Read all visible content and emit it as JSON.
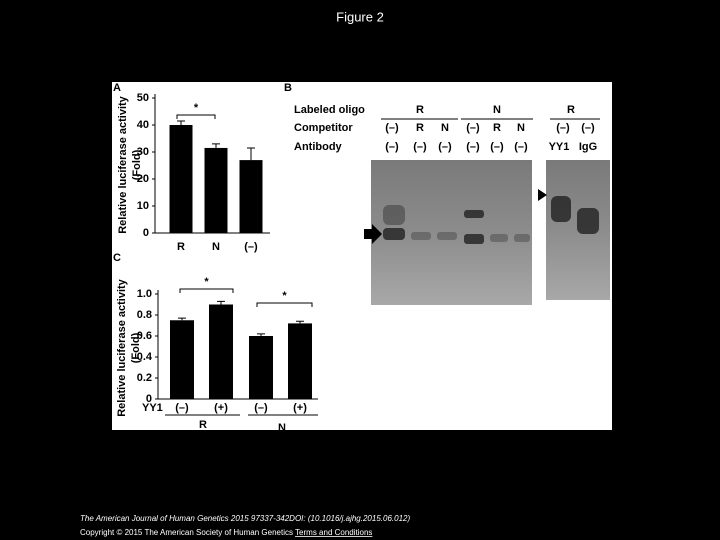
{
  "title": "Figure 2",
  "chart_data": [
    {
      "type": "bar",
      "panel": "A",
      "ylabel_lines": [
        "Relative luciferase activity",
        "(Fold)"
      ],
      "categories": [
        "R",
        "N",
        "(–)"
      ],
      "values": [
        40,
        31.5,
        27
      ],
      "errors": [
        1.5,
        1.5,
        4.5
      ],
      "ylim": [
        0,
        50
      ],
      "yticks": [
        0,
        10,
        20,
        30,
        40,
        50
      ],
      "color": "#000000",
      "significance": [
        "*"
      ]
    },
    {
      "type": "bar",
      "panel": "C",
      "ylabel_lines": [
        "Relative luciferase activity",
        "(Fold)"
      ],
      "row_label": "YY1",
      "categories": [
        "(–)",
        "(+)",
        "(–)",
        "(+)"
      ],
      "groups": [
        "R",
        "N"
      ],
      "values": [
        0.75,
        0.9,
        0.6,
        0.72
      ],
      "errors": [
        0.02,
        0.03,
        0.02,
        0.02
      ],
      "ylim": [
        0,
        1
      ],
      "yticks": [
        0,
        0.2,
        0.4,
        0.6,
        0.8,
        {
          "value": 1,
          "label": "1.0"
        }
      ],
      "color": "#000000",
      "significance": [
        "*",
        "*"
      ]
    }
  ],
  "panel_b": {
    "panel": "B",
    "row_labels": [
      "Labeled oligo",
      "Competitor",
      "Antibody"
    ],
    "oligo": [
      "R",
      "N",
      "R"
    ],
    "competitor": [
      "(–)",
      "R",
      "N",
      "(–)",
      "R",
      "N",
      "(–)",
      "(–)"
    ],
    "antibody": [
      "(–)",
      "(–)",
      "(–)",
      "(–)",
      "(–)",
      "(–)",
      "YY1",
      "IgG"
    ]
  },
  "footer": {
    "citation": "The American Journal of Human Genetics 2015 97337-342DOI: (10.1016/j.ajhg.2015.06.012)",
    "copyright": "Copyright © 2015 The American Society of Human Genetics",
    "link": "Terms and Conditions"
  }
}
